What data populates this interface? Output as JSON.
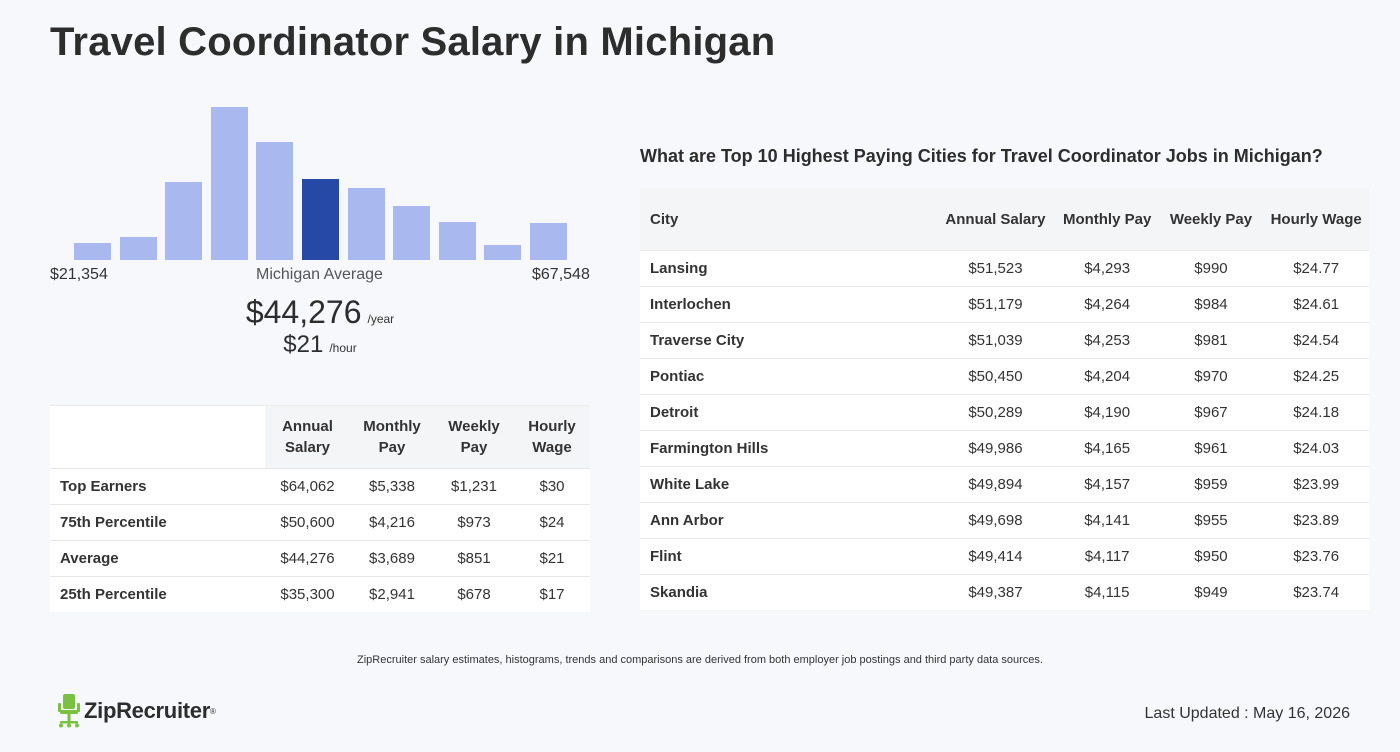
{
  "page": {
    "title": "Travel Coordinator Salary in Michigan"
  },
  "histogram": {
    "min_label": "$21,354",
    "max_label": "$67,548",
    "center_label": "Michigan Average",
    "bar_color": "#aab8f0",
    "highlight_color": "#2649a5",
    "highlight_index": 5,
    "bar_heights_relative": [
      0.11,
      0.15,
      0.51,
      1.0,
      0.77,
      0.53,
      0.47,
      0.35,
      0.25,
      0.1,
      0.24
    ]
  },
  "average": {
    "annual": "$44,276",
    "annual_unit": "/year",
    "hourly": "$21",
    "hourly_unit": "/hour"
  },
  "percentile_table": {
    "headers": [
      "Annual Salary",
      "Monthly Pay",
      "Weekly Pay",
      "Hourly Wage"
    ],
    "rows": [
      {
        "label": "Top Earners",
        "values": [
          "$64,062",
          "$5,338",
          "$1,231",
          "$30"
        ]
      },
      {
        "label": "75th Percentile",
        "values": [
          "$50,600",
          "$4,216",
          "$973",
          "$24"
        ]
      },
      {
        "label": "Average",
        "values": [
          "$44,276",
          "$3,689",
          "$851",
          "$21"
        ]
      },
      {
        "label": "25th Percentile",
        "values": [
          "$35,300",
          "$2,941",
          "$678",
          "$17"
        ]
      }
    ]
  },
  "cities": {
    "heading": "What are Top 10 Highest Paying Cities for Travel Coordinator Jobs in Michigan?",
    "headers": [
      "City",
      "Annual Salary",
      "Monthly Pay",
      "Weekly Pay",
      "Hourly Wage"
    ],
    "rows": [
      {
        "city": "Lansing",
        "values": [
          "$51,523",
          "$4,293",
          "$990",
          "$24.77"
        ]
      },
      {
        "city": "Interlochen",
        "values": [
          "$51,179",
          "$4,264",
          "$984",
          "$24.61"
        ]
      },
      {
        "city": "Traverse City",
        "values": [
          "$51,039",
          "$4,253",
          "$981",
          "$24.54"
        ]
      },
      {
        "city": "Pontiac",
        "values": [
          "$50,450",
          "$4,204",
          "$970",
          "$24.25"
        ]
      },
      {
        "city": "Detroit",
        "values": [
          "$50,289",
          "$4,190",
          "$967",
          "$24.18"
        ]
      },
      {
        "city": "Farmington Hills",
        "values": [
          "$49,986",
          "$4,165",
          "$961",
          "$24.03"
        ]
      },
      {
        "city": "White Lake",
        "values": [
          "$49,894",
          "$4,157",
          "$959",
          "$23.99"
        ]
      },
      {
        "city": "Ann Arbor",
        "values": [
          "$49,698",
          "$4,141",
          "$955",
          "$23.89"
        ]
      },
      {
        "city": "Flint",
        "values": [
          "$49,414",
          "$4,117",
          "$950",
          "$23.76"
        ]
      },
      {
        "city": "Skandia",
        "values": [
          "$49,387",
          "$4,115",
          "$949",
          "$23.74"
        ]
      }
    ]
  },
  "footer": {
    "disclaimer": "ZipRecruiter salary estimates, histograms, trends and comparisons are derived from both employer job postings and third party data sources.",
    "logo_text": "ZipRecruiter",
    "logo_icon": "chair-icon",
    "logo_color": "#7ac142",
    "last_updated": "Last Updated : May 16, 2026"
  }
}
